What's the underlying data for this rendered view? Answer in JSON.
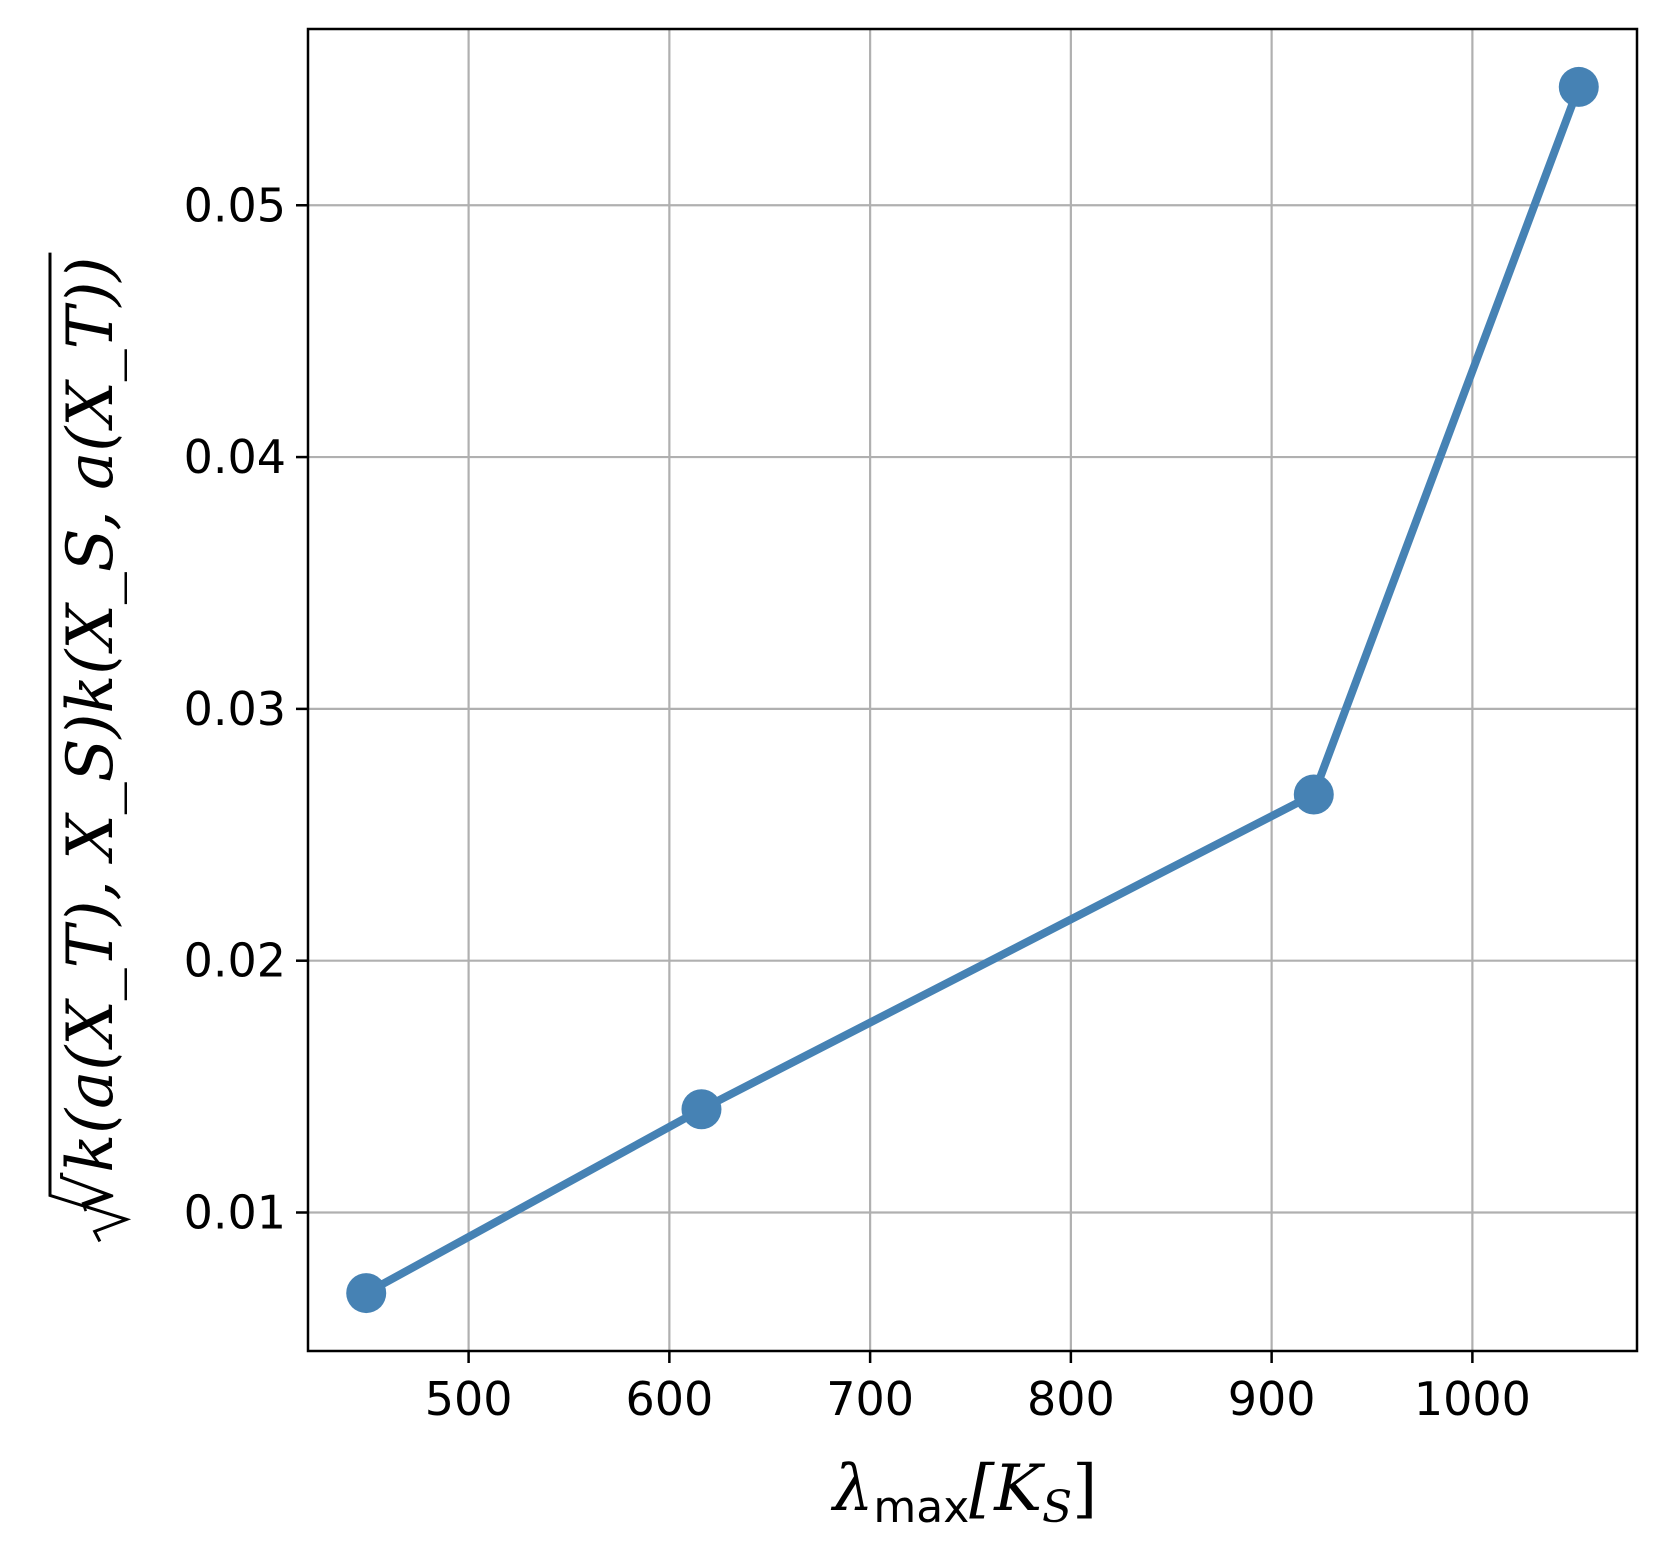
{
  "chart_data": {
    "type": "line",
    "title": "",
    "xlabel": {
      "main": "λ",
      "sub": "max",
      "rest": "[K",
      "rest_sub": "S",
      "close": "]"
    },
    "ylabel": "√k(a(X_T), X_S)k(X_S, a(X_T))",
    "xlim": [
      420,
      1082
    ],
    "ylim": [
      0.0045,
      0.057
    ],
    "x_ticks": [
      500,
      600,
      700,
      800,
      900,
      1000
    ],
    "x_tick_labels": [
      "500",
      "600",
      "700",
      "800",
      "900",
      "1000"
    ],
    "y_ticks": [
      0.01,
      0.02,
      0.03,
      0.04,
      0.05
    ],
    "y_tick_labels": [
      "0.01",
      "0.02",
      "0.03",
      "0.04",
      "0.05"
    ],
    "grid": true,
    "series": [
      {
        "x": [
          449,
          616,
          921,
          1053
        ],
        "y": [
          0.0068,
          0.0141,
          0.0266,
          0.0547
        ],
        "color": "#4682b4",
        "marker": "circle"
      }
    ]
  }
}
